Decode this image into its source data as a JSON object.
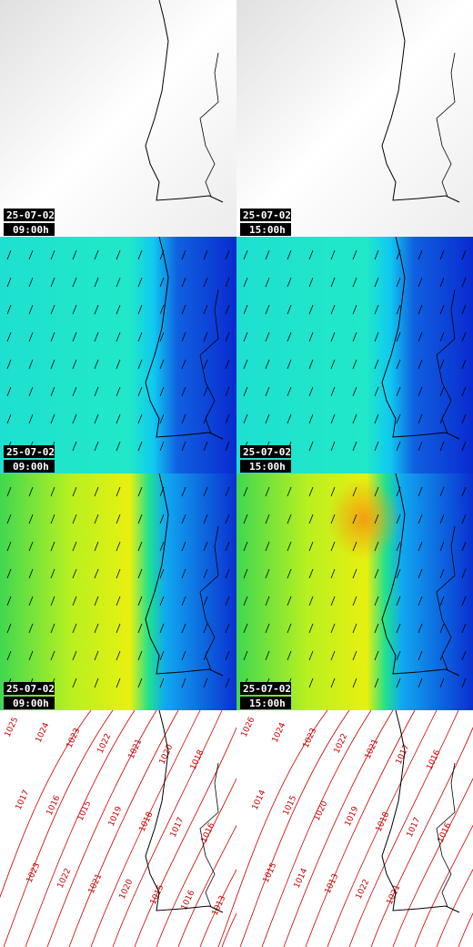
{
  "panels": [
    {
      "date": "25-07-02",
      "time": "09:00h"
    },
    {
      "date": "25-07-02",
      "time": "15:00h"
    },
    {
      "date": "25-07-02",
      "time": "09:00h"
    },
    {
      "date": "25-07-02",
      "time": "15:00h"
    },
    {
      "date": "25-07-02",
      "time": "09:00h"
    },
    {
      "date": "25-07-02",
      "time": "15:00h"
    }
  ],
  "isobar_labels": {
    "left": [
      "1025",
      "1024",
      "1023",
      "1022",
      "1021",
      "1020",
      "1018",
      "1017",
      "1016",
      "1015",
      "1019",
      "1018",
      "1017",
      "1016",
      "1023",
      "1022",
      "1021",
      "1020",
      "1015",
      "1016",
      "1013"
    ],
    "right": [
      "1026",
      "1024",
      "1023",
      "1022",
      "1021",
      "1017",
      "1016",
      "1014",
      "1015",
      "1020",
      "1019",
      "1018",
      "1017",
      "1016",
      "1015",
      "1014",
      "1013",
      "1022",
      "1021"
    ]
  }
}
